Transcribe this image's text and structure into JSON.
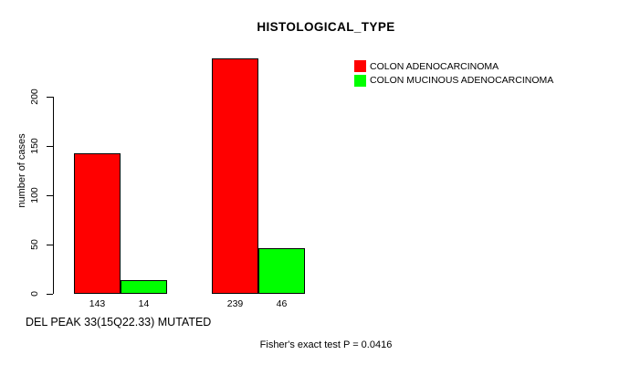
{
  "chart_data": {
    "type": "bar",
    "title": "HISTOLOGICAL_TYPE",
    "ylabel": "number of cases",
    "xlabel": "DEL PEAK 33(15Q22.33) MUTATED",
    "annotation": "Fisher's exact test P = 0.0416",
    "ylim": [
      0,
      200
    ],
    "yticks": [
      0,
      50,
      100,
      150,
      200
    ],
    "grid": false,
    "legend_position": "top-right",
    "categories": [
      "",
      ""
    ],
    "series": [
      {
        "name": "COLON ADENOCARCINOMA",
        "color": "#ff0000",
        "values": [
          143,
          239
        ]
      },
      {
        "name": "COLON MUCINOUS ADENOCARCINOMA",
        "color": "#00ff00",
        "values": [
          14,
          46
        ]
      }
    ],
    "show_bar_values": true
  }
}
